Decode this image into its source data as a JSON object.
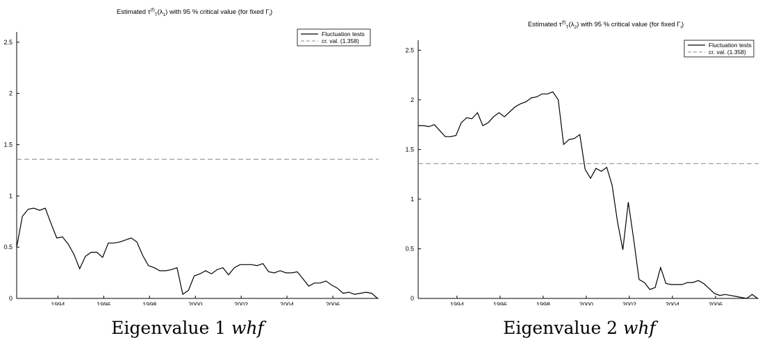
{
  "chart_data": [
    {
      "type": "line",
      "title": "Estimated τ_T^(f)(λ_1) with 95 % critical value (for fixed Γ_i)",
      "title_parts": {
        "pre": "Estimated τ",
        "sub": "T",
        "sup": "(f)",
        "arg": "(λ",
        "argsub": "1",
        "post": ") with 95 % critical value (for fixed Γ",
        "postsub": "i",
        "end": ")"
      },
      "caption": {
        "text": "Eigenvalue 1",
        "math": "whf"
      },
      "xlim": [
        1992.2,
        2008.0
      ],
      "ylim": [
        0,
        2.6
      ],
      "xticks": [
        "1994",
        "1996",
        "1998",
        "2000",
        "2002",
        "2004",
        "2006"
      ],
      "yticks": [
        "0",
        "0.5",
        "1",
        "1.5",
        "2",
        "2.5"
      ],
      "legend": {
        "position": "top-right",
        "entries": [
          "Fluctuation tests",
          "cr. val. (1.358)"
        ]
      },
      "critical_value": 1.358,
      "series": [
        {
          "name": "Fluctuation tests",
          "x": [
            1992.2,
            1992.45,
            1992.7,
            1992.95,
            1993.2,
            1993.45,
            1993.7,
            1993.95,
            1994.2,
            1994.45,
            1994.7,
            1994.95,
            1995.2,
            1995.45,
            1995.7,
            1995.95,
            1996.2,
            1996.45,
            1996.7,
            1996.95,
            1997.2,
            1997.45,
            1997.7,
            1997.95,
            1998.2,
            1998.45,
            1998.7,
            1998.95,
            1999.2,
            1999.45,
            1999.7,
            1999.95,
            2000.2,
            2000.45,
            2000.7,
            2000.95,
            2001.2,
            2001.45,
            2001.7,
            2001.95,
            2002.2,
            2002.45,
            2002.7,
            2002.95,
            2003.2,
            2003.45,
            2003.7,
            2003.95,
            2004.2,
            2004.45,
            2004.7,
            2004.95,
            2005.2,
            2005.45,
            2005.7,
            2005.95,
            2006.2,
            2006.45,
            2006.7,
            2006.95,
            2007.2,
            2007.45,
            2007.7,
            2007.95
          ],
          "y": [
            0.5,
            0.8,
            0.87,
            0.88,
            0.86,
            0.88,
            0.73,
            0.59,
            0.6,
            0.53,
            0.43,
            0.29,
            0.41,
            0.45,
            0.45,
            0.4,
            0.54,
            0.54,
            0.55,
            0.57,
            0.59,
            0.55,
            0.42,
            0.32,
            0.3,
            0.27,
            0.27,
            0.28,
            0.3,
            0.04,
            0.08,
            0.22,
            0.24,
            0.27,
            0.24,
            0.28,
            0.3,
            0.23,
            0.3,
            0.33,
            0.33,
            0.33,
            0.32,
            0.34,
            0.26,
            0.25,
            0.27,
            0.25,
            0.25,
            0.26,
            0.19,
            0.12,
            0.15,
            0.15,
            0.17,
            0.13,
            0.1,
            0.05,
            0.06,
            0.04,
            0.05,
            0.06,
            0.05,
            0.0
          ]
        },
        {
          "name": "cr. val. (1.358)",
          "constant": 1.358
        }
      ]
    },
    {
      "type": "line",
      "title": "Estimated τ_T^(f)(λ_2) with 95 % critical value (for fixed Γ_i)",
      "title_parts": {
        "pre": "Estimated τ",
        "sub": "T",
        "sup": "(f)",
        "arg": "(λ",
        "argsub": "2",
        "post": ") with 95 % critical value (for fixed Γ",
        "postsub": "i",
        "end": ")"
      },
      "caption": {
        "text": "Eigenvalue 2",
        "math": "whf"
      },
      "xlim": [
        1992.2,
        2008.0
      ],
      "ylim": [
        0,
        2.6
      ],
      "xticks": [
        "1994",
        "1996",
        "1998",
        "2000",
        "2002",
        "2004",
        "2006"
      ],
      "yticks": [
        "0",
        "0.5",
        "1",
        "1.5",
        "2",
        "2.5"
      ],
      "legend": {
        "position": "top-right",
        "entries": [
          "Fluctuation tests",
          "cr. val. (1.358)"
        ]
      },
      "critical_value": 1.358,
      "series": [
        {
          "name": "Fluctuation tests",
          "x": [
            1992.2,
            1992.45,
            1992.7,
            1992.95,
            1993.2,
            1993.45,
            1993.7,
            1993.95,
            1994.2,
            1994.45,
            1994.7,
            1994.95,
            1995.2,
            1995.45,
            1995.7,
            1995.95,
            1996.2,
            1996.45,
            1996.7,
            1996.95,
            1997.2,
            1997.45,
            1997.7,
            1997.95,
            1998.2,
            1998.45,
            1998.7,
            1998.95,
            1999.2,
            1999.45,
            1999.7,
            1999.95,
            2000.2,
            2000.45,
            2000.7,
            2000.95,
            2001.2,
            2001.45,
            2001.7,
            2001.95,
            2002.2,
            2002.45,
            2002.7,
            2002.95,
            2003.2,
            2003.45,
            2003.7,
            2003.95,
            2004.2,
            2004.45,
            2004.7,
            2004.95,
            2005.2,
            2005.45,
            2005.7,
            2005.95,
            2006.2,
            2006.45,
            2006.7,
            2006.95,
            2007.2,
            2007.45,
            2007.7,
            2007.95
          ],
          "y": [
            1.74,
            1.74,
            1.73,
            1.75,
            1.69,
            1.63,
            1.63,
            1.64,
            1.77,
            1.82,
            1.81,
            1.87,
            1.74,
            1.77,
            1.83,
            1.87,
            1.83,
            1.88,
            1.93,
            1.96,
            1.98,
            2.02,
            2.03,
            2.06,
            2.06,
            2.08,
            2.0,
            1.55,
            1.6,
            1.61,
            1.65,
            1.3,
            1.21,
            1.31,
            1.28,
            1.32,
            1.14,
            0.77,
            0.49,
            0.97,
            0.6,
            0.19,
            0.16,
            0.09,
            0.11,
            0.31,
            0.15,
            0.14,
            0.14,
            0.14,
            0.16,
            0.16,
            0.18,
            0.15,
            0.1,
            0.05,
            0.03,
            0.04,
            0.03,
            0.02,
            0.01,
            0.0,
            0.04,
            0.0
          ]
        },
        {
          "name": "cr. val. (1.358)",
          "constant": 1.358
        }
      ]
    }
  ]
}
